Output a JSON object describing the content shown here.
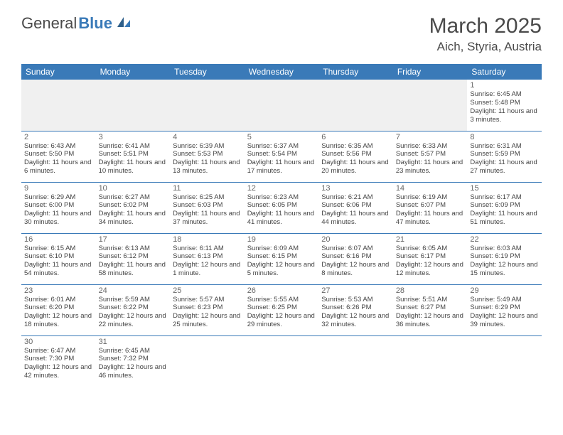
{
  "logo": {
    "text1": "General",
    "text2": "Blue"
  },
  "title": "March 2025",
  "location": "Aich, Styria, Austria",
  "colors": {
    "header_bg": "#3a7ab8",
    "header_text": "#ffffff",
    "border": "#3a7ab8",
    "text": "#444444",
    "daynum": "#666666",
    "title_text": "#4a4a4a",
    "empty_bg": "#f0f0f0"
  },
  "columns": [
    "Sunday",
    "Monday",
    "Tuesday",
    "Wednesday",
    "Thursday",
    "Friday",
    "Saturday"
  ],
  "weeks": [
    [
      null,
      null,
      null,
      null,
      null,
      null,
      {
        "n": "1",
        "sr": "6:45 AM",
        "ss": "5:48 PM",
        "dl": "11 hours and 3 minutes."
      }
    ],
    [
      {
        "n": "2",
        "sr": "6:43 AM",
        "ss": "5:50 PM",
        "dl": "11 hours and 6 minutes."
      },
      {
        "n": "3",
        "sr": "6:41 AM",
        "ss": "5:51 PM",
        "dl": "11 hours and 10 minutes."
      },
      {
        "n": "4",
        "sr": "6:39 AM",
        "ss": "5:53 PM",
        "dl": "11 hours and 13 minutes."
      },
      {
        "n": "5",
        "sr": "6:37 AM",
        "ss": "5:54 PM",
        "dl": "11 hours and 17 minutes."
      },
      {
        "n": "6",
        "sr": "6:35 AM",
        "ss": "5:56 PM",
        "dl": "11 hours and 20 minutes."
      },
      {
        "n": "7",
        "sr": "6:33 AM",
        "ss": "5:57 PM",
        "dl": "11 hours and 23 minutes."
      },
      {
        "n": "8",
        "sr": "6:31 AM",
        "ss": "5:59 PM",
        "dl": "11 hours and 27 minutes."
      }
    ],
    [
      {
        "n": "9",
        "sr": "6:29 AM",
        "ss": "6:00 PM",
        "dl": "11 hours and 30 minutes."
      },
      {
        "n": "10",
        "sr": "6:27 AM",
        "ss": "6:02 PM",
        "dl": "11 hours and 34 minutes."
      },
      {
        "n": "11",
        "sr": "6:25 AM",
        "ss": "6:03 PM",
        "dl": "11 hours and 37 minutes."
      },
      {
        "n": "12",
        "sr": "6:23 AM",
        "ss": "6:05 PM",
        "dl": "11 hours and 41 minutes."
      },
      {
        "n": "13",
        "sr": "6:21 AM",
        "ss": "6:06 PM",
        "dl": "11 hours and 44 minutes."
      },
      {
        "n": "14",
        "sr": "6:19 AM",
        "ss": "6:07 PM",
        "dl": "11 hours and 47 minutes."
      },
      {
        "n": "15",
        "sr": "6:17 AM",
        "ss": "6:09 PM",
        "dl": "11 hours and 51 minutes."
      }
    ],
    [
      {
        "n": "16",
        "sr": "6:15 AM",
        "ss": "6:10 PM",
        "dl": "11 hours and 54 minutes."
      },
      {
        "n": "17",
        "sr": "6:13 AM",
        "ss": "6:12 PM",
        "dl": "11 hours and 58 minutes."
      },
      {
        "n": "18",
        "sr": "6:11 AM",
        "ss": "6:13 PM",
        "dl": "12 hours and 1 minute."
      },
      {
        "n": "19",
        "sr": "6:09 AM",
        "ss": "6:15 PM",
        "dl": "12 hours and 5 minutes."
      },
      {
        "n": "20",
        "sr": "6:07 AM",
        "ss": "6:16 PM",
        "dl": "12 hours and 8 minutes."
      },
      {
        "n": "21",
        "sr": "6:05 AM",
        "ss": "6:17 PM",
        "dl": "12 hours and 12 minutes."
      },
      {
        "n": "22",
        "sr": "6:03 AM",
        "ss": "6:19 PM",
        "dl": "12 hours and 15 minutes."
      }
    ],
    [
      {
        "n": "23",
        "sr": "6:01 AM",
        "ss": "6:20 PM",
        "dl": "12 hours and 18 minutes."
      },
      {
        "n": "24",
        "sr": "5:59 AM",
        "ss": "6:22 PM",
        "dl": "12 hours and 22 minutes."
      },
      {
        "n": "25",
        "sr": "5:57 AM",
        "ss": "6:23 PM",
        "dl": "12 hours and 25 minutes."
      },
      {
        "n": "26",
        "sr": "5:55 AM",
        "ss": "6:25 PM",
        "dl": "12 hours and 29 minutes."
      },
      {
        "n": "27",
        "sr": "5:53 AM",
        "ss": "6:26 PM",
        "dl": "12 hours and 32 minutes."
      },
      {
        "n": "28",
        "sr": "5:51 AM",
        "ss": "6:27 PM",
        "dl": "12 hours and 36 minutes."
      },
      {
        "n": "29",
        "sr": "5:49 AM",
        "ss": "6:29 PM",
        "dl": "12 hours and 39 minutes."
      }
    ],
    [
      {
        "n": "30",
        "sr": "6:47 AM",
        "ss": "7:30 PM",
        "dl": "12 hours and 42 minutes."
      },
      {
        "n": "31",
        "sr": "6:45 AM",
        "ss": "7:32 PM",
        "dl": "12 hours and 46 minutes."
      },
      null,
      null,
      null,
      null,
      null
    ]
  ],
  "labels": {
    "sunrise": "Sunrise:",
    "sunset": "Sunset:",
    "daylight": "Daylight:"
  }
}
